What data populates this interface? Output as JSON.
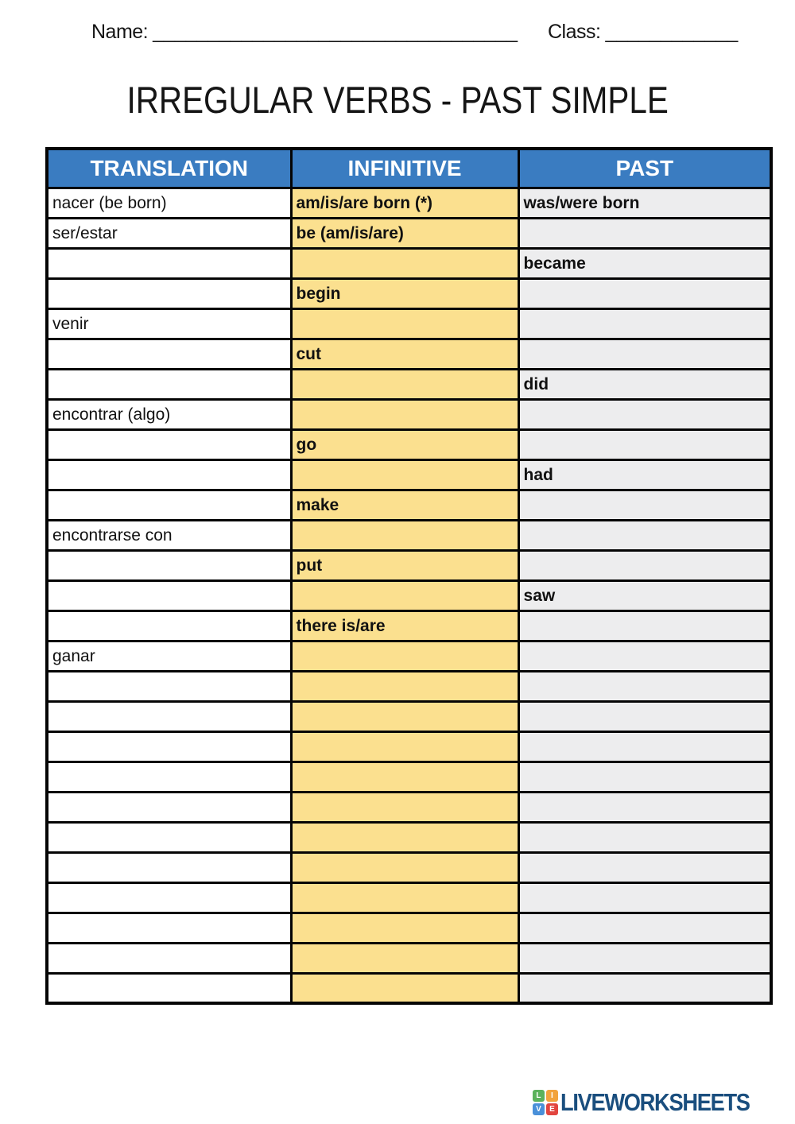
{
  "page": {
    "name_label": "Name:",
    "name_line": "_________________________________",
    "class_label": "Class:",
    "class_line": "____________",
    "title": "IRREGULAR VERBS - PAST SIMPLE"
  },
  "table": {
    "headers": [
      "TRANSLATION",
      "INFINITIVE",
      "PAST"
    ],
    "rows": [
      {
        "translation": "nacer (be born)",
        "infinitive": "am/is/are born (*)",
        "past": "was/were born"
      },
      {
        "translation": "ser/estar",
        "infinitive": "be (am/is/are)",
        "past": ""
      },
      {
        "translation": "",
        "infinitive": "",
        "past": "became"
      },
      {
        "translation": "",
        "infinitive": "begin",
        "past": ""
      },
      {
        "translation": "venir",
        "infinitive": "",
        "past": ""
      },
      {
        "translation": "",
        "infinitive": "cut",
        "past": ""
      },
      {
        "translation": "",
        "infinitive": "",
        "past": "did"
      },
      {
        "translation": "encontrar (algo)",
        "infinitive": "",
        "past": ""
      },
      {
        "translation": "",
        "infinitive": "go",
        "past": ""
      },
      {
        "translation": "",
        "infinitive": "",
        "past": "had"
      },
      {
        "translation": "",
        "infinitive": "make",
        "past": ""
      },
      {
        "translation": "encontrarse con",
        "infinitive": "",
        "past": ""
      },
      {
        "translation": "",
        "infinitive": "put",
        "past": ""
      },
      {
        "translation": "",
        "infinitive": "",
        "past": "saw"
      },
      {
        "translation": "",
        "infinitive": "there is/are",
        "past": ""
      },
      {
        "translation": "ganar",
        "infinitive": "",
        "past": ""
      },
      {
        "translation": "",
        "infinitive": "",
        "past": ""
      },
      {
        "translation": "",
        "infinitive": "",
        "past": ""
      },
      {
        "translation": "",
        "infinitive": "",
        "past": ""
      },
      {
        "translation": "",
        "infinitive": "",
        "past": ""
      },
      {
        "translation": "",
        "infinitive": "",
        "past": ""
      },
      {
        "translation": "",
        "infinitive": "",
        "past": ""
      },
      {
        "translation": "",
        "infinitive": "",
        "past": ""
      },
      {
        "translation": "",
        "infinitive": "",
        "past": ""
      },
      {
        "translation": "",
        "infinitive": "",
        "past": ""
      },
      {
        "translation": "",
        "infinitive": "",
        "past": ""
      },
      {
        "translation": "",
        "infinitive": "",
        "past": ""
      }
    ]
  },
  "footer": {
    "brand": "LIVEWORKSHEETS",
    "brand_color": "#1a4e7e",
    "logo_squares": [
      {
        "letter": "L",
        "color": "#5cb25c"
      },
      {
        "letter": "I",
        "color": "#f2a33c"
      },
      {
        "letter": "V",
        "color": "#4a90d9"
      },
      {
        "letter": "E",
        "color": "#e2453f"
      }
    ]
  },
  "colors": {
    "header_blue": "#3a7cc1",
    "infinitive_yellow": "#fbe08f",
    "past_gray": "#ededee",
    "border_black": "#050505"
  }
}
